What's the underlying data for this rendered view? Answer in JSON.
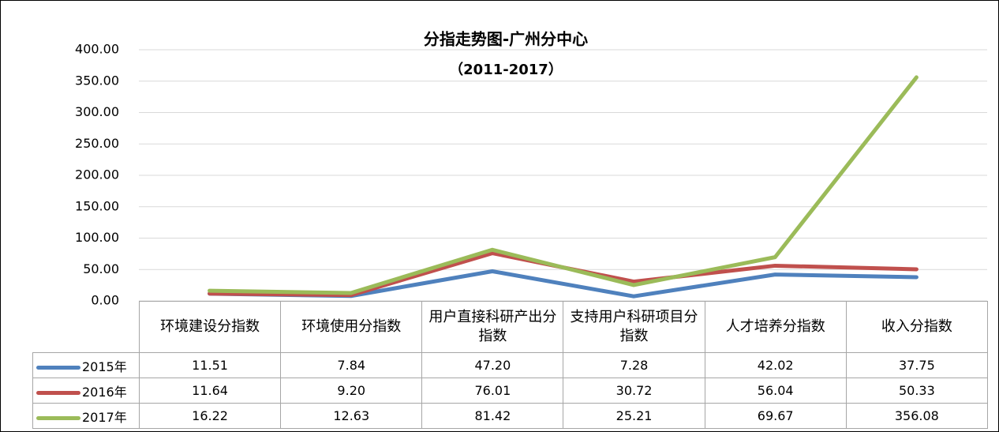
{
  "chart_data": {
    "type": "line",
    "title": "分指走势图-广州分中心",
    "subtitle": "（2011-2017）",
    "categories": [
      "环境建设分指数",
      "环境使用分指数",
      "用户直接科研产出分指数",
      "支持用户科研项目分指数",
      "人才培养分指数",
      "收入分指数"
    ],
    "series": [
      {
        "name": "2015年",
        "color": "#4f81bd",
        "values": [
          11.51,
          7.84,
          47.2,
          7.28,
          42.02,
          37.75
        ],
        "value_labels": [
          "11.51",
          "7.84",
          "47.20",
          "7.28",
          "42.02",
          "37.75"
        ]
      },
      {
        "name": "2016年",
        "color": "#c0504d",
        "values": [
          11.64,
          9.2,
          76.01,
          30.72,
          56.04,
          50.33
        ],
        "value_labels": [
          "11.64",
          "9.20",
          "76.01",
          "30.72",
          "56.04",
          "50.33"
        ]
      },
      {
        "name": "2017年",
        "color": "#9bbb59",
        "values": [
          16.22,
          12.63,
          81.42,
          25.21,
          69.67,
          356.08
        ],
        "value_labels": [
          "16.22",
          "12.63",
          "81.42",
          "25.21",
          "69.67",
          "356.08"
        ]
      }
    ],
    "ylim": [
      0,
      400
    ],
    "yticks": [
      {
        "value": 0,
        "label": "0.00"
      },
      {
        "value": 50,
        "label": "50.00"
      },
      {
        "value": 100,
        "label": "100.00"
      },
      {
        "value": 150,
        "label": "150.00"
      },
      {
        "value": 200,
        "label": "200.00"
      },
      {
        "value": 250,
        "label": "250.00"
      },
      {
        "value": 300,
        "label": "300.00"
      },
      {
        "value": 350,
        "label": "350.00"
      },
      {
        "value": 400,
        "label": "400.00"
      }
    ],
    "grid": true
  }
}
